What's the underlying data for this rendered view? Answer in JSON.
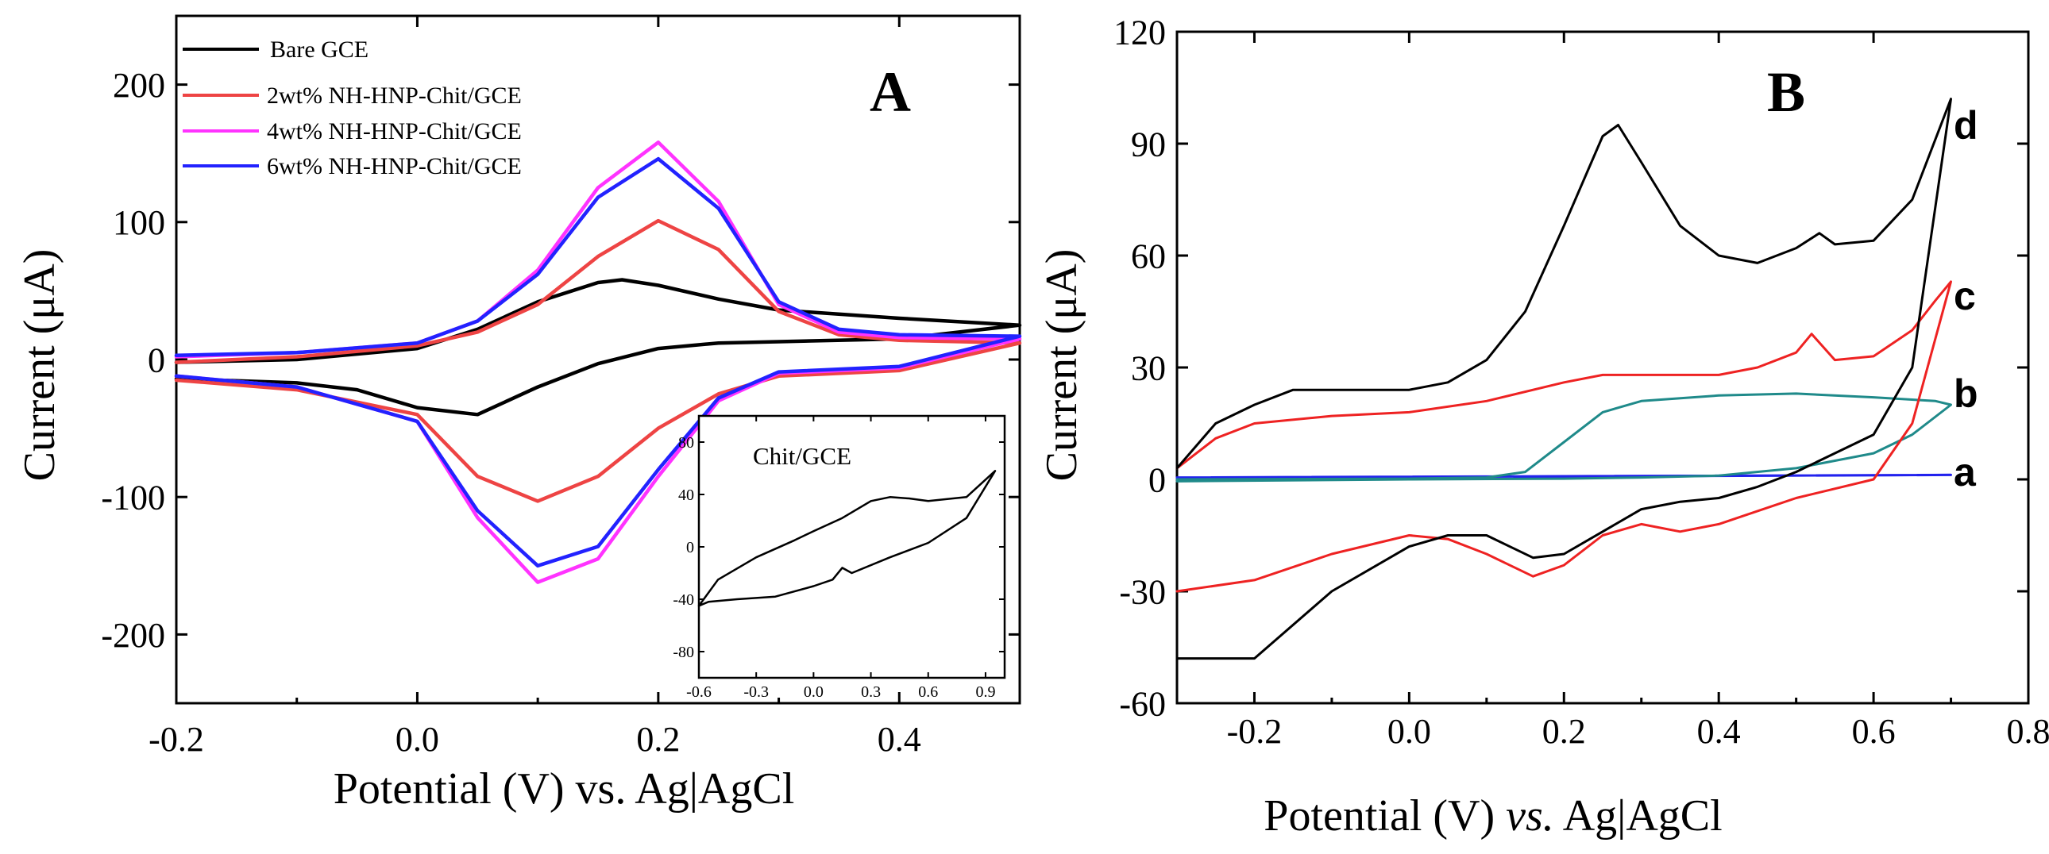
{
  "chart_data": [
    {
      "panel": "A",
      "type": "line",
      "panel_label": "A",
      "xlabel": "Potential (V) vs. Ag|AgCl",
      "ylabel": "Current (μA)",
      "xlim": [
        -0.2,
        0.5
      ],
      "ylim": [
        -250,
        250
      ],
      "xticks": [
        -0.2,
        0.0,
        0.2,
        0.4
      ],
      "xtick_labels": [
        "-0.2",
        "0.0",
        "0.2",
        "0.4"
      ],
      "yticks": [
        -200,
        -100,
        0,
        100,
        200
      ],
      "ytick_labels": [
        "-200",
        "-100",
        "0",
        "100",
        "200"
      ],
      "legend_position": "top-left",
      "series": [
        {
          "name": "Bare GCE",
          "color": "#000000",
          "x": [
            -0.2,
            -0.1,
            0.0,
            0.05,
            0.1,
            0.15,
            0.17,
            0.2,
            0.25,
            0.3,
            0.4,
            0.5,
            0.4,
            0.3,
            0.25,
            0.2,
            0.15,
            0.1,
            0.05,
            0.0,
            -0.05,
            -0.1,
            -0.2
          ],
          "y": [
            -2,
            0,
            8,
            22,
            42,
            56,
            58,
            54,
            44,
            36,
            30,
            25,
            15,
            13,
            12,
            8,
            -3,
            -20,
            -40,
            -35,
            -22,
            -17,
            -14
          ]
        },
        {
          "name": "2wt% NH-HNP-Chit/GCE",
          "color": "#ee4444",
          "x": [
            -0.2,
            -0.1,
            0.0,
            0.05,
            0.1,
            0.15,
            0.2,
            0.25,
            0.3,
            0.35,
            0.4,
            0.5,
            0.4,
            0.3,
            0.25,
            0.2,
            0.15,
            0.1,
            0.05,
            0.0,
            -0.1,
            -0.2
          ],
          "y": [
            -2,
            2,
            10,
            20,
            40,
            75,
            101,
            80,
            35,
            18,
            14,
            12,
            -8,
            -12,
            -25,
            -50,
            -85,
            -103,
            -85,
            -40,
            -22,
            -15
          ]
        },
        {
          "name": "4wt% NH-HNP-Chit/GCE",
          "color": "#ff33ff",
          "x": [
            -0.2,
            -0.1,
            0.0,
            0.05,
            0.1,
            0.15,
            0.2,
            0.25,
            0.3,
            0.35,
            0.4,
            0.5,
            0.4,
            0.3,
            0.25,
            0.2,
            0.15,
            0.1,
            0.05,
            0.0,
            -0.1,
            -0.2
          ],
          "y": [
            2,
            5,
            12,
            28,
            65,
            125,
            158,
            115,
            40,
            20,
            16,
            15,
            -6,
            -10,
            -30,
            -85,
            -145,
            -162,
            -115,
            -45,
            -20,
            -12
          ]
        },
        {
          "name": "6wt% NH-HNP-Chit/GCE",
          "color": "#2222ff",
          "x": [
            -0.2,
            -0.1,
            0.0,
            0.05,
            0.1,
            0.15,
            0.2,
            0.25,
            0.3,
            0.35,
            0.4,
            0.5,
            0.4,
            0.3,
            0.25,
            0.2,
            0.15,
            0.1,
            0.05,
            0.0,
            -0.1,
            -0.2
          ],
          "y": [
            3,
            5,
            12,
            28,
            62,
            118,
            146,
            110,
            42,
            22,
            18,
            17,
            -5,
            -9,
            -28,
            -80,
            -136,
            -150,
            -110,
            -45,
            -20,
            -12
          ]
        }
      ],
      "inset": {
        "type": "line",
        "title": "Chit/GCE",
        "xlim": [
          -0.6,
          1.0
        ],
        "ylim": [
          -100,
          100
        ],
        "xticks": [
          -0.6,
          -0.3,
          0.0,
          0.3,
          0.6,
          0.9
        ],
        "xtick_labels": [
          "-0.6",
          "-0.3",
          "0.0",
          "0.3",
          "0.6",
          "0.9"
        ],
        "yticks": [
          -80,
          -40,
          0,
          40,
          80
        ],
        "ytick_labels": [
          "-80",
          "-40",
          "0",
          "40",
          "80"
        ],
        "series": [
          {
            "name": "Chit/GCE",
            "color": "#000000",
            "x": [
              -0.6,
              -0.5,
              -0.3,
              -0.1,
              0.0,
              0.15,
              0.3,
              0.4,
              0.5,
              0.6,
              0.8,
              0.95,
              0.8,
              0.6,
              0.4,
              0.2,
              0.15,
              0.1,
              0.0,
              -0.2,
              -0.4,
              -0.55,
              -0.6
            ],
            "y": [
              -45,
              -25,
              -8,
              5,
              12,
              22,
              35,
              38,
              37,
              35,
              38,
              58,
              22,
              3,
              -8,
              -20,
              -16,
              -25,
              -30,
              -38,
              -40,
              -42,
              -45
            ]
          }
        ]
      }
    },
    {
      "panel": "B",
      "type": "line",
      "panel_label": "B",
      "xlabel_main": "Potential (V) ",
      "xlabel_italic": "vs.",
      "xlabel_tail": " Ag|AgCl",
      "ylabel": "Current (μA)",
      "xlim": [
        -0.3,
        0.8
      ],
      "ylim": [
        -60,
        120
      ],
      "xticks": [
        -0.2,
        0.0,
        0.2,
        0.4,
        0.6,
        0.8
      ],
      "xtick_labels": [
        "-0.2",
        "0.0",
        "0.2",
        "0.4",
        "0.6",
        "0.8"
      ],
      "yticks": [
        -60,
        -30,
        0,
        30,
        60,
        90,
        120
      ],
      "ytick_labels": [
        "-60",
        "-30",
        "0",
        "30",
        "60",
        "90",
        "120"
      ],
      "series": [
        {
          "name": "a",
          "color": "#2222ee",
          "x": [
            -0.3,
            0.7,
            -0.3
          ],
          "y": [
            0.5,
            1.2,
            0.3
          ]
        },
        {
          "name": "b",
          "color": "#1f8a8a",
          "x": [
            -0.3,
            0.0,
            0.1,
            0.15,
            0.2,
            0.25,
            0.3,
            0.4,
            0.5,
            0.6,
            0.68,
            0.7,
            0.65,
            0.6,
            0.5,
            0.4,
            0.3,
            0.2,
            0.0,
            -0.3
          ],
          "y": [
            0,
            0.2,
            0.5,
            2,
            10,
            18,
            21,
            22.5,
            23,
            22,
            21,
            20,
            12,
            7,
            3,
            1,
            0.5,
            0.2,
            0,
            -0.5
          ]
        },
        {
          "name": "c",
          "color": "#ee2222",
          "x": [
            -0.3,
            -0.25,
            -0.2,
            -0.1,
            0.0,
            0.1,
            0.2,
            0.25,
            0.3,
            0.4,
            0.45,
            0.5,
            0.52,
            0.55,
            0.6,
            0.65,
            0.68,
            0.7,
            0.65,
            0.6,
            0.5,
            0.4,
            0.35,
            0.3,
            0.25,
            0.2,
            0.16,
            0.1,
            0.05,
            0.0,
            -0.1,
            -0.2,
            -0.3
          ],
          "y": [
            3,
            11,
            15,
            17,
            18,
            21,
            26,
            28,
            28,
            28,
            30,
            34,
            39,
            32,
            33,
            40,
            48,
            53,
            15,
            0,
            -5,
            -12,
            -14,
            -12,
            -15,
            -23,
            -26,
            -20,
            -16,
            -15,
            -20,
            -27,
            -30
          ]
        },
        {
          "name": "d",
          "color": "#000000",
          "x": [
            -0.3,
            -0.25,
            -0.2,
            -0.15,
            -0.1,
            0.0,
            0.05,
            0.1,
            0.15,
            0.2,
            0.25,
            0.27,
            0.3,
            0.35,
            0.4,
            0.45,
            0.5,
            0.53,
            0.55,
            0.6,
            0.65,
            0.7,
            0.65,
            0.6,
            0.5,
            0.45,
            0.4,
            0.35,
            0.3,
            0.25,
            0.2,
            0.16,
            0.1,
            0.05,
            0.0,
            -0.1,
            -0.2,
            -0.25,
            -0.3
          ],
          "y": [
            3,
            15,
            20,
            24,
            24,
            24,
            26,
            32,
            45,
            68,
            92,
            95,
            85,
            68,
            60,
            58,
            62,
            66,
            63,
            64,
            75,
            102,
            30,
            12,
            2,
            -2,
            -5,
            -6,
            -8,
            -14,
            -20,
            -21,
            -15,
            -15,
            -18,
            -30,
            -48,
            -48,
            -48
          ]
        }
      ],
      "curve_labels": [
        "a",
        "b",
        "c",
        "d"
      ]
    }
  ]
}
